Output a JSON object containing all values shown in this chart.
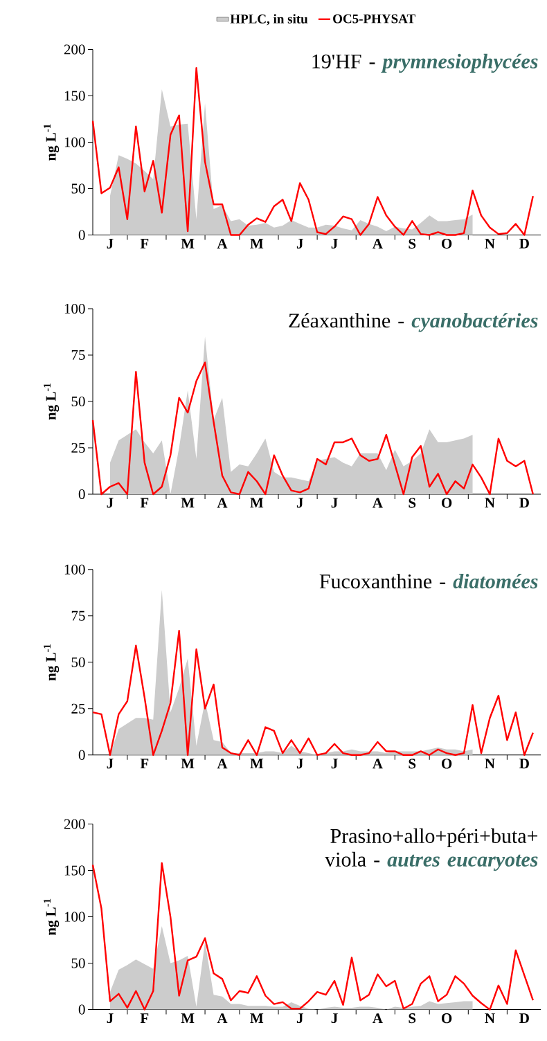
{
  "chart_data": [
    {
      "type": "line",
      "title": "19'HF -",
      "subtitle": "prymnesiophycées",
      "ylabel": "ng L$^{-1}$",
      "legend": "top",
      "categories": [
        null,
        null,
        "J",
        null,
        null,
        null,
        "F",
        null,
        null,
        null,
        null,
        "M",
        null,
        null,
        null,
        "A",
        null,
        null,
        null,
        "M",
        null,
        null,
        null,
        null,
        "J",
        null,
        null,
        null,
        "J",
        null,
        null,
        null,
        null,
        "A",
        null,
        null,
        null,
        "S",
        null,
        null,
        null,
        "O",
        null,
        null,
        null,
        null,
        "N",
        null,
        null,
        null,
        "D",
        null
      ],
      "ylim": [
        0,
        200
      ],
      "yticks": [
        0,
        50,
        100,
        150,
        200
      ],
      "series": [
        {
          "name": "HPLC, in situ",
          "type": "area",
          "color": "#cccccc",
          "values": [
            null,
            null,
            42,
            86,
            82,
            77,
            69,
            60,
            157,
            117,
            119,
            120,
            17,
            142,
            28,
            32,
            15,
            17,
            10,
            11,
            13,
            8,
            10,
            16,
            12,
            8,
            8,
            11,
            10,
            7,
            5,
            16,
            12,
            9,
            4,
            9,
            7,
            6,
            13,
            21,
            15,
            15,
            16,
            17,
            22,
            null,
            null,
            null,
            null,
            null,
            null,
            null
          ]
        },
        {
          "name": "OC5-PHYSAT",
          "color": "#ff0000",
          "values": [
            123,
            45,
            51,
            73,
            17,
            117,
            47,
            80,
            24,
            108,
            129,
            4,
            180,
            79,
            33,
            33,
            0,
            0,
            11,
            18,
            14,
            31,
            38,
            15,
            56,
            38,
            3,
            1,
            9,
            20,
            17,
            0,
            12,
            41,
            21,
            9,
            0,
            15,
            1,
            0,
            3,
            0,
            0,
            2,
            48,
            21,
            8,
            1,
            2,
            12,
            0,
            42
          ]
        }
      ]
    },
    {
      "type": "line",
      "title": "Zéaxanthine -",
      "subtitle": "cyanobactéries",
      "ylabel": "ng L$^{-1}$",
      "categories": [
        null,
        null,
        "J",
        null,
        null,
        null,
        "F",
        null,
        null,
        null,
        null,
        "M",
        null,
        null,
        null,
        "A",
        null,
        null,
        null,
        "M",
        null,
        null,
        null,
        null,
        "J",
        null,
        null,
        null,
        "J",
        null,
        null,
        null,
        null,
        "A",
        null,
        null,
        null,
        "S",
        null,
        null,
        null,
        "O",
        null,
        null,
        null,
        null,
        "N",
        null,
        null,
        null,
        "D",
        null
      ],
      "ylim": [
        0,
        100
      ],
      "yticks": [
        0,
        25,
        50,
        75,
        100
      ],
      "series": [
        {
          "type": "area",
          "color": "#cccccc",
          "values": [
            null,
            null,
            17,
            29,
            32,
            35,
            28,
            22,
            29,
            0,
            25,
            56,
            19,
            85,
            40,
            52,
            12,
            16,
            15,
            22,
            30,
            12,
            9,
            9,
            8,
            7,
            18,
            19,
            20,
            17,
            15,
            22,
            22,
            22,
            13,
            24,
            15,
            18,
            22,
            35,
            28,
            28,
            29,
            30,
            32,
            null,
            null,
            null,
            null,
            null,
            null,
            null
          ]
        },
        {
          "color": "#ff0000",
          "values": [
            40,
            0,
            4,
            6,
            0,
            66,
            17,
            0,
            4,
            21,
            52,
            44,
            61,
            71,
            39,
            10,
            1,
            0,
            12,
            7,
            0,
            21,
            10,
            2,
            1,
            3,
            19,
            16,
            28,
            28,
            30,
            21,
            18,
            19,
            32,
            16,
            0,
            20,
            26,
            4,
            11,
            0,
            7,
            3,
            16,
            9,
            0,
            30,
            18,
            15,
            18,
            0
          ]
        }
      ]
    },
    {
      "type": "line",
      "title": "Fucoxanthine -",
      "subtitle": "diatomées",
      "ylabel": "ng L$^{-1}$",
      "categories": [
        null,
        null,
        "J",
        null,
        null,
        null,
        "F",
        null,
        null,
        null,
        null,
        "M",
        null,
        null,
        null,
        "A",
        null,
        null,
        null,
        "M",
        null,
        null,
        null,
        null,
        "J",
        null,
        null,
        null,
        "J",
        null,
        null,
        null,
        null,
        "A",
        null,
        null,
        null,
        "S",
        null,
        null,
        null,
        "O",
        null,
        null,
        null,
        null,
        "N",
        null,
        null,
        null,
        "D",
        null
      ],
      "ylim": [
        0,
        100
      ],
      "yticks": [
        0,
        25,
        50,
        75,
        100
      ],
      "series": [
        {
          "type": "area",
          "color": "#cccccc",
          "values": [
            null,
            null,
            0,
            14,
            17,
            20,
            20,
            19,
            89,
            23,
            36,
            52,
            5,
            29,
            8,
            7,
            1,
            1,
            1,
            1,
            2,
            2,
            1,
            5,
            2,
            1,
            0,
            1,
            2,
            2,
            3,
            2,
            2,
            2,
            1,
            2,
            2,
            2,
            2,
            3,
            4,
            3,
            3,
            2,
            3,
            null,
            null,
            null,
            null,
            null,
            null,
            null
          ]
        },
        {
          "color": "#ff0000",
          "values": [
            23,
            22,
            0,
            22,
            29,
            59,
            31,
            0,
            13,
            28,
            67,
            0,
            57,
            25,
            38,
            4,
            1,
            0,
            8,
            0,
            15,
            13,
            1,
            8,
            1,
            9,
            0,
            1,
            6,
            1,
            0,
            0,
            1,
            7,
            2,
            2,
            0,
            0,
            2,
            0,
            3,
            1,
            0,
            1,
            27,
            1,
            20,
            32,
            8,
            23,
            0,
            12
          ]
        }
      ]
    },
    {
      "type": "line",
      "title": "Prasino+allo+péri+buta+ viola -",
      "subtitle": "autres eucaryotes",
      "ylabel": "ng L$^{-1}$",
      "categories": [
        null,
        null,
        "J",
        null,
        null,
        null,
        "F",
        null,
        null,
        null,
        null,
        "M",
        null,
        null,
        null,
        "A",
        null,
        null,
        null,
        "M",
        null,
        null,
        null,
        null,
        "J",
        null,
        null,
        null,
        "J",
        null,
        null,
        null,
        null,
        "A",
        null,
        null,
        null,
        "S",
        null,
        null,
        null,
        "O",
        null,
        null,
        null,
        null,
        "N",
        null,
        null,
        null,
        "D",
        null
      ],
      "ylim": [
        0,
        200
      ],
      "yticks": [
        0,
        50,
        100,
        150,
        200
      ],
      "series": [
        {
          "type": "area",
          "color": "#cccccc",
          "values": [
            null,
            null,
            19,
            43,
            48,
            54,
            49,
            44,
            90,
            50,
            53,
            58,
            3,
            73,
            16,
            14,
            6,
            6,
            4,
            4,
            4,
            3,
            3,
            8,
            4,
            1,
            0,
            2,
            3,
            2,
            2,
            3,
            3,
            2,
            0,
            3,
            2,
            3,
            4,
            9,
            6,
            7,
            8,
            9,
            9,
            null,
            null,
            null,
            null,
            null,
            null,
            null
          ]
        },
        {
          "color": "#ff0000",
          "values": [
            156,
            109,
            9,
            17,
            2,
            20,
            0,
            20,
            158,
            100,
            15,
            53,
            57,
            77,
            39,
            33,
            10,
            20,
            18,
            36,
            15,
            6,
            8,
            1,
            1,
            9,
            19,
            16,
            31,
            5,
            56,
            10,
            16,
            38,
            25,
            31,
            1,
            6,
            28,
            36,
            9,
            16,
            36,
            28,
            15,
            7,
            0,
            26,
            6,
            64,
            37,
            10
          ]
        }
      ]
    }
  ]
}
